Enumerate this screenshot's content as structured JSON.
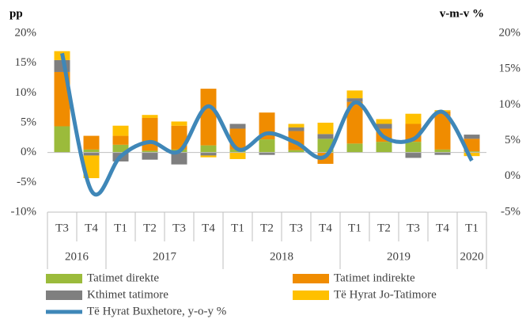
{
  "chart_data": {
    "type": "bar",
    "stacked": true,
    "y_label": "pp",
    "y2_label": "v-m-v %",
    "groups": [
      {
        "name": "2016",
        "categories": [
          "T3",
          "T4"
        ]
      },
      {
        "name": "2017",
        "categories": [
          "T1",
          "T2",
          "T3",
          "T4"
        ]
      },
      {
        "name": "2018",
        "categories": [
          "T1",
          "T2",
          "T3",
          "T4"
        ]
      },
      {
        "name": "2019",
        "categories": [
          "T1",
          "T2",
          "T3",
          "T4"
        ]
      },
      {
        "name": "2020",
        "categories": [
          "T1"
        ]
      }
    ],
    "series": [
      {
        "name": "Tatimet direkte",
        "color": "#9bbb3b",
        "values": [
          4.4,
          0.5,
          1.3,
          0.3,
          0.5,
          1.2,
          0.5,
          2.2,
          0.4,
          2.3,
          1.5,
          1.8,
          1.8,
          0.5,
          0.2
        ]
      },
      {
        "name": "Tatimet indirekte",
        "color": "#f08c00",
        "values": [
          9.1,
          2.3,
          1.5,
          5.5,
          4.0,
          9.5,
          3.5,
          4.5,
          3.2,
          -1.9,
          7.0,
          2.2,
          3.0,
          6.4,
          2.1
        ]
      },
      {
        "name": "Kthimet tatimore",
        "color": "#7f7f7f",
        "values": [
          2.0,
          -0.5,
          -1.5,
          -1.2,
          -2.0,
          -0.5,
          0.8,
          -0.4,
          0.6,
          0.8,
          0.6,
          0.8,
          -0.9,
          -0.4,
          0.7
        ]
      },
      {
        "name": "Të Hyrat Jo-Tatimore",
        "color": "#ffc000",
        "values": [
          1.5,
          -3.8,
          1.7,
          0.5,
          0.7,
          -0.3,
          -1.1,
          0.0,
          0.6,
          1.9,
          1.3,
          0.8,
          1.7,
          0.2,
          -0.6
        ]
      },
      {
        "name": "Të Hyrat Buxhetore, y-o-y %",
        "color": "#3f87b8",
        "type": "line",
        "axis": "y2",
        "values": [
          17.2,
          -2.0,
          2.8,
          4.8,
          3.5,
          9.8,
          3.8,
          6.0,
          4.7,
          2.8,
          10.3,
          5.5,
          5.2,
          9.0,
          2.2
        ]
      }
    ],
    "ylim": [
      -10,
      20
    ],
    "yticks": [
      {
        "value": -10,
        "label": "-10%"
      },
      {
        "value": -5,
        "label": "-5%"
      },
      {
        "value": 0,
        "label": "0%"
      },
      {
        "value": 5,
        "label": "5%"
      },
      {
        "value": 10,
        "label": "10%"
      },
      {
        "value": 15,
        "label": "15%"
      },
      {
        "value": 20,
        "label": "20%"
      }
    ],
    "y2lim": [
      -5,
      20
    ],
    "y2ticks": [
      {
        "value": -5,
        "label": "-5%"
      },
      {
        "value": 0,
        "label": "0%"
      },
      {
        "value": 5,
        "label": "5%"
      },
      {
        "value": 10,
        "label": "10%"
      },
      {
        "value": 15,
        "label": "15%"
      },
      {
        "value": 20,
        "label": "20%"
      }
    ],
    "grid": false
  }
}
